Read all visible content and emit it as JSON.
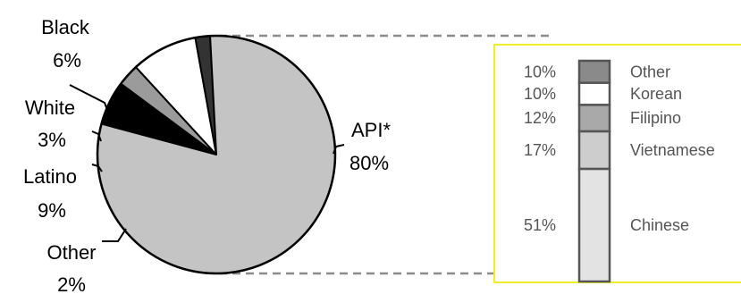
{
  "chart_data": [
    {
      "type": "pie",
      "title": "",
      "slices": [
        {
          "label": "API*",
          "value": 80,
          "display": "80%",
          "color": "#c4c4c4"
        },
        {
          "label": "Black",
          "value": 6,
          "display": "6%",
          "color": "#000000"
        },
        {
          "label": "White",
          "value": 3,
          "display": "3%",
          "color": "#9b9b9b"
        },
        {
          "label": "Latino",
          "value": 9,
          "display": "9%",
          "color": "#ffffff"
        },
        {
          "label": "Other",
          "value": 2,
          "display": "2%",
          "color": "#333333"
        }
      ]
    },
    {
      "type": "bar",
      "stacked": true,
      "title": "",
      "segments": [
        {
          "label": "Other",
          "value": 10,
          "display": "10%",
          "color": "#8a8a8a"
        },
        {
          "label": "Korean",
          "value": 10,
          "display": "10%",
          "color": "#ffffff"
        },
        {
          "label": "Filipino",
          "value": 12,
          "display": "12%",
          "color": "#a9a9a9"
        },
        {
          "label": "Vietnamese",
          "value": 17,
          "display": "17%",
          "color": "#cdcdcd"
        },
        {
          "label": "Chinese",
          "value": 51,
          "display": "51%",
          "color": "#e3e3e3"
        }
      ]
    }
  ],
  "colors": {
    "box_border": "#f2ef2a",
    "connector": "#8c8c8c"
  }
}
